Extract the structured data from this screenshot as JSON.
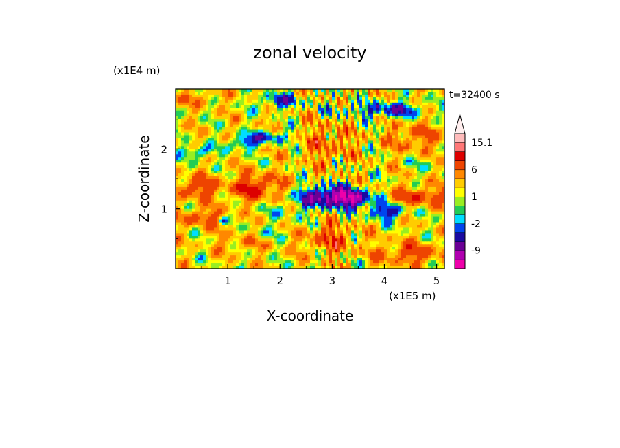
{
  "chart_data": {
    "type": "heatmap",
    "title": "zonal velocity",
    "xlabel": "X-coordinate",
    "ylabel": "Z-coordinate",
    "x_units": "(x1E5 m)",
    "y_units": "(x1E4 m)",
    "time_label": "t=32400 s",
    "xlim": [
      0,
      5.15
    ],
    "ylim": [
      0,
      3.0
    ],
    "x_ticks": [
      1,
      2,
      3,
      4,
      5
    ],
    "y_ticks": [
      1,
      2
    ],
    "colorbar": {
      "levels": [
        -15.1,
        -12,
        -9,
        -6,
        -4,
        -2,
        -1,
        0,
        1,
        2,
        4,
        6,
        9,
        12,
        15.1
      ],
      "colors": [
        "#ee00aa",
        "#b000b0",
        "#6a0095",
        "#1a0aa0",
        "#0044ee",
        "#00ddff",
        "#22cc55",
        "#99ee22",
        "#ffff00",
        "#ffcc00",
        "#ff8800",
        "#ee4400",
        "#dd0000",
        "#ff7777",
        "#ffbbbb"
      ],
      "tick_labels": [
        "15.1",
        "6",
        "1",
        "-2",
        "-9"
      ],
      "tick_values": [
        15.1,
        6,
        1,
        -2,
        -9
      ],
      "extend_max": true
    },
    "features": [
      {
        "x": 3.0,
        "z": 1.2,
        "value": -13,
        "rx": 0.55,
        "rz": 0.17
      },
      {
        "x": 3.45,
        "z": 1.15,
        "value": -9,
        "rx": 0.25,
        "rz": 0.12
      },
      {
        "x": 4.05,
        "z": 0.95,
        "value": -8,
        "rx": 0.35,
        "rz": 0.12
      },
      {
        "x": 4.15,
        "z": 2.65,
        "value": -7,
        "rx": 0.6,
        "rz": 0.13
      },
      {
        "x": 1.3,
        "z": 2.1,
        "value": -7,
        "rx": 0.22,
        "rz": 0.12
      },
      {
        "x": 0.45,
        "z": 1.95,
        "value": -6,
        "rx": 0.28,
        "rz": 0.1
      },
      {
        "x": 1.8,
        "z": 2.2,
        "value": -6,
        "rx": 0.35,
        "rz": 0.1
      },
      {
        "x": 2.0,
        "z": 2.8,
        "value": -6,
        "rx": 0.4,
        "rz": 0.13
      },
      {
        "x": 0.9,
        "z": 0.8,
        "value": -6,
        "rx": 0.08,
        "rz": 0.06
      },
      {
        "x": 1.55,
        "z": 1.35,
        "value": 7,
        "rx": 0.5,
        "rz": 0.22
      },
      {
        "x": 0.4,
        "z": 1.35,
        "value": 6,
        "rx": 0.45,
        "rz": 0.18
      },
      {
        "x": 4.7,
        "z": 1.2,
        "value": 6,
        "rx": 0.5,
        "rz": 0.16
      },
      {
        "x": 0.5,
        "z": 0.85,
        "value": 5,
        "rx": 0.5,
        "rz": 0.15
      },
      {
        "x": 4.5,
        "z": 0.25,
        "value": 5,
        "rx": 0.7,
        "rz": 0.18
      },
      {
        "x": 2.95,
        "z": 0.5,
        "value": 5,
        "rx": 0.45,
        "rz": 0.25
      },
      {
        "x": 1.3,
        "z": 0.45,
        "value": 3,
        "rx": 0.5,
        "rz": 0.15
      },
      {
        "x": 2.9,
        "z": 2.1,
        "value": 4,
        "rx": 0.45,
        "rz": 0.35
      },
      {
        "x": 4.6,
        "z": 2.2,
        "value": 4,
        "rx": 0.5,
        "rz": 0.25
      },
      {
        "x": 2.2,
        "z": 1.0,
        "value": -2,
        "rx": 0.6,
        "rz": 0.25
      },
      {
        "x": 1.6,
        "z": 0.55,
        "value": -2,
        "rx": 0.4,
        "rz": 0.12
      },
      {
        "x": 3.2,
        "z": 2.65,
        "value": -3,
        "rx": 0.35,
        "rz": 0.1
      },
      {
        "x": 0.4,
        "z": 2.85,
        "value": 3,
        "rx": 0.4,
        "rz": 0.12
      },
      {
        "x": 4.8,
        "z": 1.75,
        "value": -1.5,
        "rx": 0.35,
        "rz": 0.15
      }
    ]
  }
}
